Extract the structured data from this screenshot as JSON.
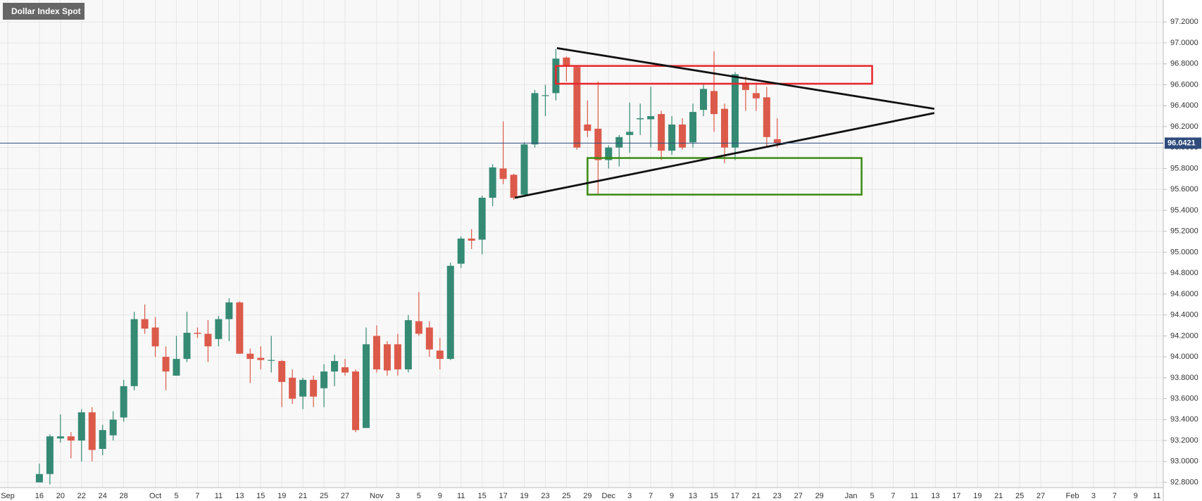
{
  "chart_data": {
    "type": "candlestick",
    "title": "Dollar Index Spot",
    "categories": [
      "Sep",
      null,
      null,
      "16",
      null,
      "20",
      null,
      "22",
      null,
      "24",
      null,
      "28",
      null,
      null,
      "Oct",
      null,
      "5",
      null,
      "7",
      null,
      "11",
      null,
      "13",
      null,
      "15",
      null,
      "19",
      null,
      "21",
      null,
      "25",
      null,
      "27",
      null,
      null,
      "Nov",
      null,
      "3",
      null,
      "5",
      null,
      "9",
      null,
      "11",
      null,
      "15",
      null,
      "17",
      null,
      "19",
      null,
      "23",
      null,
      "25",
      null,
      "29",
      null,
      "Dec",
      null,
      "3",
      null,
      "7",
      null,
      "9",
      null,
      "13",
      null,
      "15",
      null,
      "17",
      null,
      "21",
      null,
      "23",
      null,
      "27",
      null,
      "29",
      null,
      null,
      "Jan",
      null,
      "5",
      null,
      "7",
      null,
      "11",
      null,
      "13",
      null,
      "17",
      null,
      "19",
      null,
      "21",
      null,
      "25",
      null,
      "27",
      null,
      null,
      "Feb",
      null,
      "3",
      null,
      "7",
      null,
      "9",
      null,
      "11"
    ],
    "open": [
      null,
      null,
      null,
      92.8,
      92.88,
      93.22,
      93.24,
      93.2,
      93.47,
      93.12,
      93.25,
      93.42,
      93.72,
      94.36,
      94.28,
      94.0,
      93.82,
      93.98,
      94.23,
      94.22,
      94.17,
      94.36,
      94.52,
      94.03,
      93.99,
      93.97,
      93.96,
      93.8,
      93.62,
      93.78,
      93.7,
      93.86,
      93.9,
      93.86,
      93.32,
      94.2,
      94.12,
      94.12,
      93.88,
      94.34,
      94.28,
      94.06,
      93.98,
      94.89,
      95.13,
      95.12,
      95.52,
      95.8,
      95.74,
      95.55,
      96.03,
      96.5,
      96.52,
      96.86,
      96.77,
      96.22,
      96.18,
      95.88,
      96.0,
      96.12,
      96.27,
      96.27,
      96.32,
      95.97,
      96.22,
      96.05,
      96.36,
      96.54,
      96.37,
      96.0,
      96.62,
      96.52,
      96.48,
      96.08,
      null,
      null,
      null,
      null,
      null,
      null,
      null,
      null,
      null,
      null,
      null,
      null,
      null,
      null,
      null,
      null,
      null,
      null,
      null,
      null,
      null,
      null,
      null,
      null,
      null,
      null,
      null,
      null,
      null,
      null,
      null,
      null,
      null,
      null,
      null,
      null
    ],
    "high": [
      null,
      null,
      null,
      92.98,
      93.26,
      93.45,
      93.28,
      93.5,
      93.52,
      93.35,
      93.48,
      93.78,
      94.43,
      94.5,
      94.38,
      94.1,
      94.2,
      94.43,
      94.28,
      94.35,
      94.39,
      94.56,
      94.53,
      94.08,
      94.1,
      94.2,
      93.97,
      93.88,
      93.8,
      93.82,
      93.93,
      94.02,
      93.98,
      93.88,
      94.28,
      94.3,
      94.15,
      94.22,
      94.4,
      94.62,
      94.34,
      94.18,
      94.9,
      95.15,
      95.22,
      95.54,
      95.84,
      96.25,
      95.75,
      96.05,
      96.55,
      96.6,
      96.94,
      96.87,
      96.78,
      96.45,
      96.63,
      96.02,
      96.12,
      96.43,
      96.42,
      96.58,
      96.35,
      96.3,
      96.28,
      96.42,
      96.6,
      96.92,
      96.42,
      96.72,
      96.68,
      96.62,
      96.58,
      96.28,
      null,
      null,
      null,
      null,
      null,
      null,
      null,
      null,
      null,
      null,
      null,
      null,
      null,
      null,
      null,
      null,
      null,
      null,
      null,
      null,
      null,
      null,
      null,
      null,
      null,
      null,
      null,
      null,
      null,
      null,
      null,
      null,
      null,
      null,
      null,
      null
    ],
    "low": [
      null,
      null,
      null,
      92.8,
      92.78,
      93.18,
      93.03,
      93.0,
      93.0,
      93.06,
      93.2,
      93.38,
      93.68,
      94.22,
      94.0,
      93.68,
      93.82,
      93.95,
      94.18,
      93.95,
      94.1,
      94.15,
      94.03,
      93.75,
      93.88,
      93.85,
      93.52,
      93.55,
      93.5,
      93.52,
      93.52,
      93.72,
      93.82,
      93.28,
      93.32,
      93.85,
      93.82,
      93.82,
      93.85,
      94.2,
      94.0,
      93.88,
      93.97,
      94.85,
      95.03,
      94.98,
      95.44,
      95.65,
      95.5,
      95.53,
      96.0,
      96.3,
      96.45,
      96.63,
      95.98,
      96.1,
      95.55,
      95.8,
      95.82,
      95.95,
      96.12,
      96.0,
      95.88,
      95.93,
      95.98,
      96.0,
      96.3,
      96.15,
      95.85,
      95.88,
      96.35,
      96.35,
      96.0,
      96.0,
      null,
      null,
      null,
      null,
      null,
      null,
      null,
      null,
      null,
      null,
      null,
      null,
      null,
      null,
      null,
      null,
      null,
      null,
      null,
      null,
      null,
      null,
      null,
      null,
      null,
      null,
      null,
      null,
      null,
      null,
      null,
      null,
      null,
      null,
      null,
      null
    ],
    "close": [
      null,
      null,
      null,
      92.88,
      93.24,
      93.24,
      93.2,
      93.47,
      93.11,
      93.3,
      93.4,
      93.72,
      94.36,
      94.27,
      94.1,
      93.86,
      93.98,
      94.23,
      94.22,
      94.1,
      94.36,
      94.52,
      94.03,
      93.98,
      93.97,
      93.97,
      93.76,
      93.6,
      93.78,
      93.62,
      93.86,
      93.96,
      93.85,
      93.3,
      94.12,
      93.88,
      93.87,
      93.88,
      94.35,
      94.22,
      94.07,
      93.98,
      94.87,
      95.13,
      95.11,
      95.52,
      95.81,
      95.7,
      95.52,
      96.03,
      96.52,
      96.5,
      96.85,
      96.78,
      96.0,
      96.16,
      95.88,
      96.0,
      96.1,
      96.15,
      96.28,
      96.3,
      95.97,
      96.22,
      96.0,
      96.34,
      96.56,
      96.32,
      96.0,
      96.7,
      96.55,
      96.47,
      96.1,
      96.04,
      null,
      null,
      null,
      null,
      null,
      null,
      null,
      null,
      null,
      null,
      null,
      null,
      null,
      null,
      null,
      null,
      null,
      null,
      null,
      null,
      null,
      null,
      null,
      null,
      null,
      null,
      null,
      null,
      null,
      null,
      null,
      null,
      null,
      null,
      null,
      null
    ],
    "up_color": "#358a74",
    "down_color": "#dc5a4a",
    "ylim": [
      92.75,
      97.41
    ],
    "yticks": [
      {
        "value": 92.8,
        "label": "92.8000"
      },
      {
        "value": 93.0,
        "label": "93.0000"
      },
      {
        "value": 93.2,
        "label": "93.2000"
      },
      {
        "value": 93.4,
        "label": "93.4000"
      },
      {
        "value": 93.6,
        "label": "93.6000"
      },
      {
        "value": 93.8,
        "label": "93.8000"
      },
      {
        "value": 94.0,
        "label": "94.0000"
      },
      {
        "value": 94.2,
        "label": "94.2000"
      },
      {
        "value": 94.4,
        "label": "94.4000"
      },
      {
        "value": 94.6,
        "label": "94.6000"
      },
      {
        "value": 94.8,
        "label": "94.8000"
      },
      {
        "value": 95.0,
        "label": "95.0000"
      },
      {
        "value": 95.2,
        "label": "95.2000"
      },
      {
        "value": 95.4,
        "label": "95.4000"
      },
      {
        "value": 95.6,
        "label": "95.6000"
      },
      {
        "value": 95.8,
        "label": "95.8000"
      },
      {
        "value": 96.0,
        "label": "96.0000"
      },
      {
        "value": 96.2,
        "label": "96.2000"
      },
      {
        "value": 96.4,
        "label": "96.4000"
      },
      {
        "value": 96.6,
        "label": "96.6000"
      },
      {
        "value": 96.8,
        "label": "96.8000"
      },
      {
        "value": 97.0,
        "label": "97.0000"
      },
      {
        "value": 97.2,
        "label": "97.2000"
      }
    ],
    "grid": true,
    "last_price": 96.0421,
    "last_price_color": "#2f4b7c",
    "trendlines": [
      {
        "x": [
          52.1,
          87.9
        ],
        "y": [
          96.95,
          96.37
        ],
        "color": "#111111"
      },
      {
        "x": [
          48.1,
          87.9
        ],
        "y": [
          95.52,
          96.33
        ],
        "color": "#111111"
      }
    ],
    "zones": [
      {
        "x": [
          52,
          82
        ],
        "y": [
          96.61,
          96.78
        ],
        "color": "#e8262c"
      },
      {
        "x": [
          55,
          81
        ],
        "y": [
          95.55,
          95.9
        ],
        "color": "#3a8a12"
      }
    ]
  }
}
